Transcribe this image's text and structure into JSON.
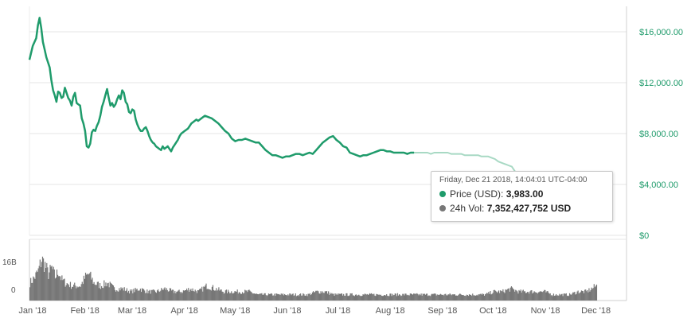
{
  "colors": {
    "price": "#1f9b6b",
    "price_faded": "#a8d9c4",
    "volume": "#777777",
    "grid": "#e6e6e6",
    "marker_halo": "#bfe6d5"
  },
  "tooltip": {
    "date": "Friday, Dec 21 2018, 14:04:01 UTC-04:00",
    "price_label": "Price (USD):",
    "price_value": "3,983.00",
    "volume_label": "24h Vol:",
    "volume_value": "7,352,427,752 USD"
  },
  "chart_data": {
    "type": "line",
    "x_tick_labels": [
      "Jan '18",
      "Feb '18",
      "Mar '18",
      "Apr '18",
      "May '18",
      "Jun '18",
      "Jul '18",
      "Aug '18",
      "Sep '18",
      "Oct '18",
      "Nov '18",
      "Dec '18"
    ],
    "price_axis": {
      "ticks": [
        0,
        4000,
        8000,
        12000,
        16000
      ],
      "tick_labels": [
        "$0",
        "$4,000.00",
        "$8,000.00",
        "$12,000.00",
        "$16,000.00"
      ],
      "position": "right"
    },
    "volume_axis": {
      "ticks": [
        0,
        16000000000
      ],
      "tick_labels": [
        "0",
        "16B"
      ],
      "position": "left"
    },
    "x_range_days": [
      0,
      354
    ],
    "series": [
      {
        "name": "Price (USD)",
        "points": [
          [
            0,
            13800
          ],
          [
            2,
            14900
          ],
          [
            4,
            15500
          ],
          [
            5,
            16500
          ],
          [
            6,
            17100
          ],
          [
            7,
            16300
          ],
          [
            8,
            15200
          ],
          [
            9,
            14600
          ],
          [
            10,
            14000
          ],
          [
            11,
            13600
          ],
          [
            12,
            13200
          ],
          [
            13,
            12200
          ],
          [
            14,
            11400
          ],
          [
            15,
            11000
          ],
          [
            16,
            10500
          ],
          [
            17,
            11300
          ],
          [
            18,
            11200
          ],
          [
            19,
            10800
          ],
          [
            20,
            10900
          ],
          [
            21,
            11600
          ],
          [
            22,
            11200
          ],
          [
            23,
            10800
          ],
          [
            24,
            10600
          ],
          [
            25,
            10200
          ],
          [
            26,
            10900
          ],
          [
            27,
            11200
          ],
          [
            28,
            10400
          ],
          [
            29,
            10300
          ],
          [
            30,
            10200
          ],
          [
            31,
            9200
          ],
          [
            32,
            8800
          ],
          [
            33,
            8200
          ],
          [
            34,
            7000
          ],
          [
            35,
            6900
          ],
          [
            36,
            7200
          ],
          [
            37,
            8100
          ],
          [
            38,
            8300
          ],
          [
            39,
            8200
          ],
          [
            40,
            8600
          ],
          [
            41,
            8900
          ],
          [
            42,
            9400
          ],
          [
            43,
            10100
          ],
          [
            44,
            10500
          ],
          [
            45,
            11000
          ],
          [
            46,
            11500
          ],
          [
            47,
            10800
          ],
          [
            48,
            10200
          ],
          [
            49,
            10400
          ],
          [
            50,
            10100
          ],
          [
            51,
            10300
          ],
          [
            52,
            10700
          ],
          [
            53,
            11000
          ],
          [
            54,
            10700
          ],
          [
            55,
            11400
          ],
          [
            56,
            11200
          ],
          [
            57,
            10500
          ],
          [
            58,
            10300
          ],
          [
            59,
            9700
          ],
          [
            60,
            9600
          ],
          [
            61,
            9900
          ],
          [
            62,
            9800
          ],
          [
            63,
            9100
          ],
          [
            64,
            8700
          ],
          [
            65,
            8400
          ],
          [
            66,
            8200
          ],
          [
            67,
            8200
          ],
          [
            68,
            8400
          ],
          [
            69,
            8500
          ],
          [
            70,
            8200
          ],
          [
            71,
            7800
          ],
          [
            72,
            7500
          ],
          [
            73,
            7300
          ],
          [
            74,
            7200
          ],
          [
            75,
            7000
          ],
          [
            76,
            6900
          ],
          [
            77,
            6800
          ],
          [
            78,
            6700
          ],
          [
            79,
            7000
          ],
          [
            80,
            6800
          ],
          [
            81,
            6900
          ],
          [
            82,
            7000
          ],
          [
            83,
            6800
          ],
          [
            84,
            6600
          ],
          [
            85,
            6900
          ],
          [
            86,
            7100
          ],
          [
            87,
            7300
          ],
          [
            88,
            7500
          ],
          [
            89,
            7800
          ],
          [
            90,
            8000
          ],
          [
            91,
            8100
          ],
          [
            92,
            8200
          ],
          [
            93,
            8300
          ],
          [
            94,
            8400
          ],
          [
            95,
            8600
          ],
          [
            96,
            8800
          ],
          [
            97,
            8900
          ],
          [
            98,
            9000
          ],
          [
            99,
            9100
          ],
          [
            100,
            9000
          ],
          [
            102,
            9200
          ],
          [
            104,
            9400
          ],
          [
            106,
            9300
          ],
          [
            108,
            9200
          ],
          [
            110,
            9000
          ],
          [
            112,
            8800
          ],
          [
            114,
            8500
          ],
          [
            116,
            8200
          ],
          [
            118,
            8000
          ],
          [
            120,
            7600
          ],
          [
            122,
            7400
          ],
          [
            124,
            7500
          ],
          [
            126,
            7500
          ],
          [
            128,
            7600
          ],
          [
            130,
            7500
          ],
          [
            132,
            7400
          ],
          [
            134,
            7300
          ],
          [
            136,
            7300
          ],
          [
            138,
            7000
          ],
          [
            140,
            6700
          ],
          [
            142,
            6500
          ],
          [
            144,
            6300
          ],
          [
            146,
            6300
          ],
          [
            148,
            6200
          ],
          [
            150,
            6100
          ],
          [
            152,
            6200
          ],
          [
            154,
            6200
          ],
          [
            156,
            6300
          ],
          [
            158,
            6400
          ],
          [
            160,
            6400
          ],
          [
            162,
            6300
          ],
          [
            164,
            6400
          ],
          [
            166,
            6500
          ],
          [
            168,
            6400
          ],
          [
            170,
            6700
          ],
          [
            172,
            7000
          ],
          [
            174,
            7300
          ],
          [
            176,
            7500
          ],
          [
            178,
            7700
          ],
          [
            180,
            7800
          ],
          [
            182,
            7500
          ],
          [
            184,
            7300
          ],
          [
            186,
            7000
          ],
          [
            188,
            6900
          ],
          [
            190,
            6500
          ],
          [
            192,
            6400
          ],
          [
            194,
            6300
          ],
          [
            196,
            6200
          ],
          [
            198,
            6300
          ],
          [
            200,
            6300
          ],
          [
            202,
            6400
          ],
          [
            204,
            6500
          ],
          [
            206,
            6600
          ],
          [
            208,
            6700
          ],
          [
            210,
            6700
          ],
          [
            212,
            6600
          ],
          [
            214,
            6600
          ],
          [
            216,
            6500
          ],
          [
            218,
            6500
          ],
          [
            220,
            6500
          ],
          [
            222,
            6500
          ],
          [
            224,
            6400
          ],
          [
            226,
            6500
          ],
          [
            228,
            6500
          ],
          [
            230,
            6500
          ],
          [
            232,
            6500
          ],
          [
            234,
            6500
          ],
          [
            236,
            6500
          ],
          [
            238,
            6400
          ],
          [
            240,
            6500
          ],
          [
            242,
            6500
          ],
          [
            244,
            6500
          ],
          [
            246,
            6500
          ],
          [
            248,
            6500
          ],
          [
            250,
            6400
          ],
          [
            252,
            6400
          ],
          [
            254,
            6400
          ],
          [
            256,
            6400
          ],
          [
            258,
            6300
          ],
          [
            260,
            6300
          ],
          [
            262,
            6300
          ],
          [
            264,
            6300
          ],
          [
            266,
            6300
          ],
          [
            268,
            6200
          ],
          [
            270,
            6200
          ],
          [
            272,
            6200
          ],
          [
            274,
            6100
          ],
          [
            276,
            6000
          ],
          [
            278,
            5800
          ],
          [
            280,
            5700
          ],
          [
            282,
            5600
          ],
          [
            284,
            5500
          ],
          [
            286,
            5400
          ],
          [
            288,
            5000
          ],
          [
            290,
            4600
          ],
          [
            292,
            4500
          ],
          [
            294,
            4400
          ],
          [
            296,
            4300
          ],
          [
            298,
            4200
          ],
          [
            300,
            4200
          ],
          [
            302,
            4300
          ],
          [
            304,
            4100
          ],
          [
            306,
            4100
          ],
          [
            308,
            3900
          ],
          [
            310,
            3800
          ],
          [
            312,
            3700
          ],
          [
            314,
            3600
          ],
          [
            316,
            3500
          ],
          [
            318,
            3400
          ],
          [
            320,
            3400
          ],
          [
            322,
            3300
          ],
          [
            324,
            3300
          ],
          [
            326,
            3400
          ],
          [
            328,
            3500
          ],
          [
            330,
            3600
          ],
          [
            332,
            3700
          ],
          [
            334,
            3900
          ],
          [
            336,
            3983
          ]
        ]
      }
    ],
    "faded_after_day": 228,
    "volume_profile": [
      [
        0,
        6
      ],
      [
        3,
        8
      ],
      [
        5,
        10
      ],
      [
        7,
        14
      ],
      [
        9,
        12
      ],
      [
        11,
        9
      ],
      [
        13,
        11
      ],
      [
        15,
        8
      ],
      [
        17,
        10
      ],
      [
        19,
        7
      ],
      [
        21,
        6
      ],
      [
        25,
        5
      ],
      [
        30,
        5
      ],
      [
        33,
        8
      ],
      [
        35,
        9
      ],
      [
        38,
        6
      ],
      [
        42,
        5
      ],
      [
        46,
        6
      ],
      [
        50,
        4
      ],
      [
        55,
        4
      ],
      [
        60,
        3
      ],
      [
        65,
        4
      ],
      [
        70,
        3
      ],
      [
        75,
        3
      ],
      [
        80,
        4
      ],
      [
        85,
        3
      ],
      [
        90,
        3
      ],
      [
        95,
        4
      ],
      [
        100,
        3
      ],
      [
        105,
        5
      ],
      [
        110,
        4
      ],
      [
        115,
        3
      ],
      [
        120,
        3
      ],
      [
        125,
        3
      ],
      [
        130,
        3
      ],
      [
        135,
        2
      ],
      [
        140,
        2
      ],
      [
        145,
        2
      ],
      [
        150,
        2
      ],
      [
        155,
        2
      ],
      [
        160,
        2
      ],
      [
        165,
        2
      ],
      [
        170,
        3
      ],
      [
        175,
        3
      ],
      [
        180,
        2
      ],
      [
        185,
        2
      ],
      [
        190,
        2
      ],
      [
        195,
        2
      ],
      [
        200,
        2
      ],
      [
        205,
        2
      ],
      [
        210,
        2
      ],
      [
        215,
        2
      ],
      [
        220,
        2
      ],
      [
        225,
        2
      ],
      [
        230,
        2
      ],
      [
        235,
        2
      ],
      [
        240,
        2
      ],
      [
        245,
        2
      ],
      [
        250,
        2
      ],
      [
        255,
        2
      ],
      [
        260,
        2
      ],
      [
        265,
        2
      ],
      [
        270,
        2
      ],
      [
        275,
        3
      ],
      [
        280,
        3
      ],
      [
        285,
        4
      ],
      [
        290,
        3
      ],
      [
        295,
        3
      ],
      [
        300,
        3
      ],
      [
        305,
        3
      ],
      [
        310,
        2
      ],
      [
        315,
        2
      ],
      [
        320,
        2
      ],
      [
        325,
        3
      ],
      [
        330,
        3
      ],
      [
        336,
        5
      ]
    ],
    "volume_unit": "billion USD",
    "grid": true,
    "legend": "none",
    "hover_index_day": 336
  }
}
